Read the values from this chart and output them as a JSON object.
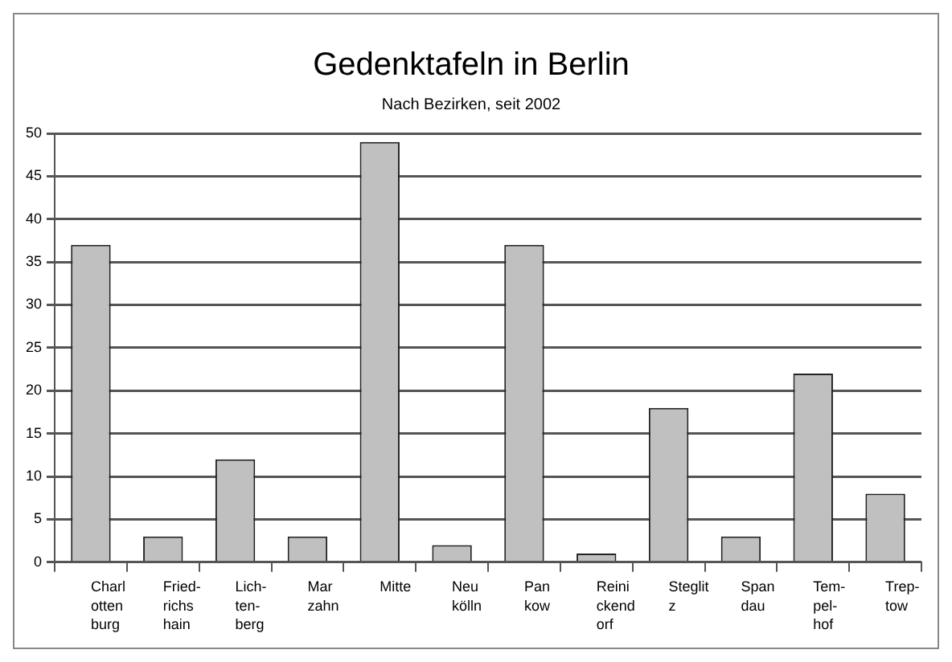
{
  "chart_data": {
    "type": "bar",
    "title": "Gedenktafeln in Berlin",
    "subtitle": "Nach Bezirken, seit 2002",
    "categories": [
      "Charl\notten\nburg",
      "Fried-\nrichs\nhain",
      "Lich-\nten-\nberg",
      "Mar\nzahn",
      "Mitte",
      "Neu\nkölln",
      "Pan\nkow",
      "Reini\nckend\norf",
      "Steglit\nz",
      "Span\ndau",
      "Tem-\npel-\nhof",
      "Trep-\ntow"
    ],
    "values": [
      37,
      3,
      12,
      3,
      49,
      2,
      37,
      1,
      18,
      3,
      22,
      8
    ],
    "color": "#c0c0c0",
    "ylim": [
      0,
      50
    ],
    "yticks": [
      0,
      5,
      10,
      15,
      20,
      25,
      30,
      35,
      40,
      45,
      50
    ],
    "grid": "y"
  }
}
